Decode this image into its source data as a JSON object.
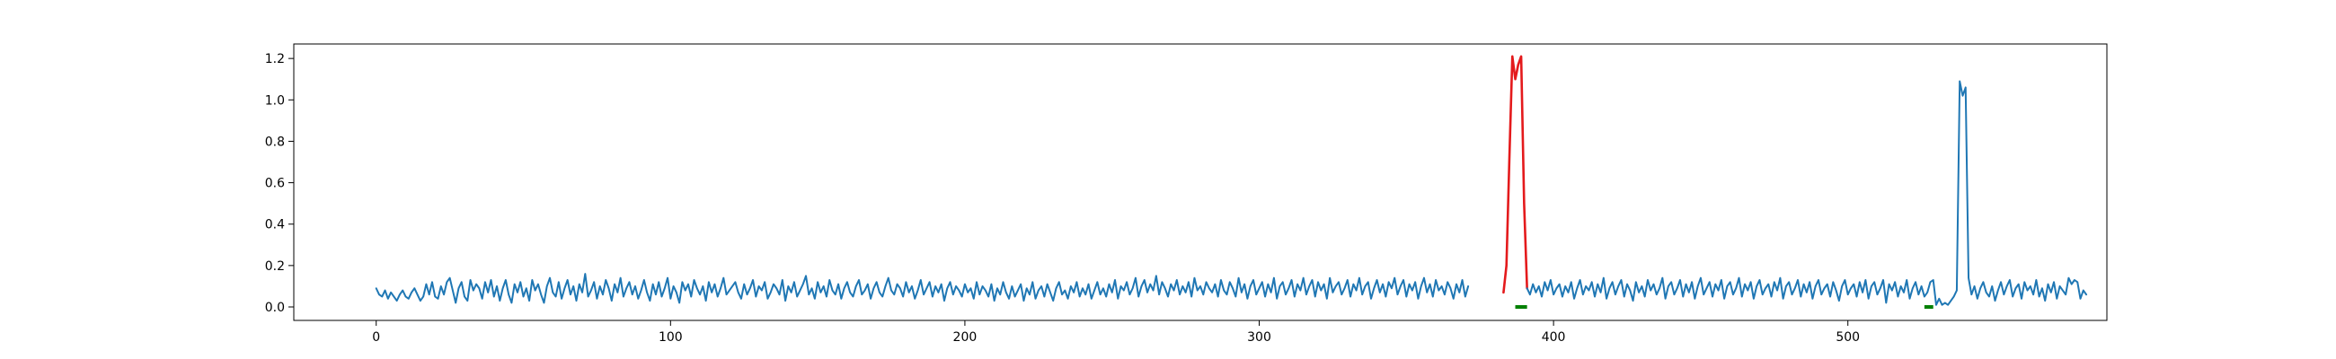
{
  "chart_data": {
    "type": "line",
    "title": "",
    "xlabel": "",
    "ylabel": "",
    "xlim": [
      -28,
      588
    ],
    "ylim": [
      -0.065,
      1.27
    ],
    "grid": false,
    "xticks": [
      0,
      100,
      200,
      300,
      400,
      500
    ],
    "xtick_labels": [
      "0",
      "100",
      "200",
      "300",
      "400",
      "500"
    ],
    "yticks": [
      0.0,
      0.2,
      0.4,
      0.6,
      0.8,
      1.0,
      1.2
    ],
    "ytick_labels": [
      "0.0",
      "0.2",
      "0.4",
      "0.6",
      "0.8",
      "1.0",
      "1.2"
    ],
    "series": [
      {
        "role": "signal",
        "color": "#1f77b4",
        "x_start": 0,
        "y": [
          0.09,
          0.06,
          0.05,
          0.08,
          0.04,
          0.07,
          0.05,
          0.03,
          0.06,
          0.08,
          0.05,
          0.04,
          0.07,
          0.09,
          0.06,
          0.03,
          0.05,
          0.11,
          0.06,
          0.12,
          0.05,
          0.04,
          0.1,
          0.06,
          0.12,
          0.14,
          0.08,
          0.02,
          0.09,
          0.12,
          0.05,
          0.03,
          0.13,
          0.08,
          0.11,
          0.09,
          0.04,
          0.12,
          0.07,
          0.13,
          0.05,
          0.1,
          0.03,
          0.09,
          0.13,
          0.06,
          0.02,
          0.11,
          0.07,
          0.12,
          0.05,
          0.09,
          0.03,
          0.13,
          0.08,
          0.11,
          0.06,
          0.02,
          0.1,
          0.14,
          0.07,
          0.05,
          0.12,
          0.04,
          0.09,
          0.13,
          0.06,
          0.1,
          0.03,
          0.11,
          0.07,
          0.16,
          0.05,
          0.08,
          0.12,
          0.04,
          0.1,
          0.06,
          0.13,
          0.09,
          0.03,
          0.11,
          0.07,
          0.14,
          0.05,
          0.09,
          0.12,
          0.06,
          0.1,
          0.04,
          0.08,
          0.13,
          0.07,
          0.03,
          0.11,
          0.06,
          0.12,
          0.05,
          0.09,
          0.14,
          0.04,
          0.1,
          0.07,
          0.02,
          0.12,
          0.08,
          0.11,
          0.05,
          0.13,
          0.09,
          0.06,
          0.1,
          0.03,
          0.12,
          0.07,
          0.11,
          0.05,
          0.09,
          0.14,
          0.06,
          0.08,
          0.1,
          0.12,
          0.07,
          0.04,
          0.11,
          0.06,
          0.09,
          0.13,
          0.05,
          0.1,
          0.08,
          0.12,
          0.04,
          0.07,
          0.11,
          0.09,
          0.06,
          0.13,
          0.03,
          0.1,
          0.07,
          0.12,
          0.05,
          0.08,
          0.11,
          0.15,
          0.06,
          0.09,
          0.04,
          0.12,
          0.07,
          0.1,
          0.05,
          0.13,
          0.08,
          0.06,
          0.11,
          0.04,
          0.09,
          0.12,
          0.07,
          0.05,
          0.1,
          0.13,
          0.06,
          0.08,
          0.11,
          0.04,
          0.09,
          0.12,
          0.07,
          0.05,
          0.1,
          0.14,
          0.08,
          0.06,
          0.11,
          0.09,
          0.05,
          0.12,
          0.07,
          0.1,
          0.04,
          0.08,
          0.13,
          0.06,
          0.09,
          0.12,
          0.05,
          0.1,
          0.07,
          0.11,
          0.03,
          0.09,
          0.12,
          0.06,
          0.1,
          0.08,
          0.05,
          0.11,
          0.07,
          0.09,
          0.04,
          0.12,
          0.06,
          0.1,
          0.08,
          0.05,
          0.11,
          0.03,
          0.09,
          0.06,
          0.12,
          0.07,
          0.04,
          0.1,
          0.05,
          0.08,
          0.11,
          0.03,
          0.09,
          0.06,
          0.12,
          0.04,
          0.08,
          0.1,
          0.05,
          0.11,
          0.07,
          0.03,
          0.09,
          0.12,
          0.06,
          0.08,
          0.04,
          0.1,
          0.07,
          0.12,
          0.05,
          0.09,
          0.06,
          0.11,
          0.04,
          0.08,
          0.12,
          0.06,
          0.09,
          0.05,
          0.11,
          0.07,
          0.13,
          0.04,
          0.1,
          0.08,
          0.12,
          0.06,
          0.09,
          0.14,
          0.05,
          0.1,
          0.13,
          0.07,
          0.11,
          0.08,
          0.15,
          0.06,
          0.12,
          0.09,
          0.05,
          0.11,
          0.08,
          0.13,
          0.06,
          0.1,
          0.07,
          0.12,
          0.05,
          0.14,
          0.08,
          0.1,
          0.06,
          0.12,
          0.09,
          0.07,
          0.11,
          0.05,
          0.13,
          0.08,
          0.06,
          0.12,
          0.09,
          0.05,
          0.14,
          0.07,
          0.11,
          0.04,
          0.1,
          0.13,
          0.06,
          0.09,
          0.12,
          0.05,
          0.11,
          0.07,
          0.14,
          0.04,
          0.1,
          0.12,
          0.06,
          0.09,
          0.13,
          0.05,
          0.11,
          0.08,
          0.14,
          0.06,
          0.1,
          0.13,
          0.05,
          0.12,
          0.08,
          0.11,
          0.04,
          0.14,
          0.07,
          0.1,
          0.12,
          0.06,
          0.09,
          0.13,
          0.05,
          0.11,
          0.08,
          0.14,
          0.06,
          0.1,
          0.12,
          0.04,
          0.09,
          0.13,
          0.07,
          0.11,
          0.05,
          0.12,
          0.09,
          0.14,
          0.06,
          0.1,
          0.13,
          0.05,
          0.11,
          0.08,
          0.12,
          0.04,
          0.1,
          0.14,
          0.07,
          0.11,
          0.05,
          0.13,
          0.08,
          0.1,
          0.06,
          0.12,
          0.09,
          0.04,
          0.11,
          0.07,
          0.13,
          0.05,
          0.1
        ]
      },
      {
        "role": "highlight",
        "color": "#e41a1c",
        "x_start": 383,
        "y": [
          0.07,
          0.2,
          0.72,
          1.21,
          1.1,
          1.17,
          1.21,
          0.5,
          0.09
        ]
      },
      {
        "role": "signal-continued",
        "color": "#1f77b4",
        "x_start": 391,
        "y": [
          0.09,
          0.06,
          0.11,
          0.07,
          0.1,
          0.05,
          0.12,
          0.08,
          0.13,
          0.06,
          0.09,
          0.11,
          0.05,
          0.1,
          0.07,
          0.12,
          0.04,
          0.09,
          0.13,
          0.06,
          0.1,
          0.08,
          0.12,
          0.05,
          0.11,
          0.07,
          0.14,
          0.04,
          0.09,
          0.12,
          0.06,
          0.1,
          0.13,
          0.05,
          0.11,
          0.08,
          0.03,
          0.12,
          0.07,
          0.1,
          0.05,
          0.13,
          0.08,
          0.11,
          0.06,
          0.09,
          0.14,
          0.04,
          0.1,
          0.12,
          0.06,
          0.09,
          0.13,
          0.05,
          0.11,
          0.07,
          0.12,
          0.04,
          0.1,
          0.14,
          0.06,
          0.09,
          0.12,
          0.05,
          0.11,
          0.08,
          0.13,
          0.04,
          0.1,
          0.12,
          0.06,
          0.09,
          0.14,
          0.05,
          0.11,
          0.08,
          0.12,
          0.04,
          0.1,
          0.13,
          0.06,
          0.09,
          0.11,
          0.05,
          0.12,
          0.08,
          0.14,
          0.04,
          0.1,
          0.12,
          0.06,
          0.09,
          0.13,
          0.05,
          0.11,
          0.07,
          0.12,
          0.04,
          0.1,
          0.13,
          0.06,
          0.09,
          0.11,
          0.05,
          0.12,
          0.08,
          0.03,
          0.1,
          0.13,
          0.06,
          0.09,
          0.11,
          0.05,
          0.12,
          0.07,
          0.13,
          0.04,
          0.1,
          0.12,
          0.06,
          0.09,
          0.13,
          0.02,
          0.11,
          0.08,
          0.12,
          0.05,
          0.1,
          0.07,
          0.13,
          0.04,
          0.09,
          0.12,
          0.06,
          0.1,
          0.05,
          0.07,
          0.12,
          0.13,
          0.01,
          0.04,
          0.01,
          0.02,
          0.01,
          0.03,
          0.05,
          0.08,
          1.09,
          1.02,
          1.06,
          0.14,
          0.06,
          0.1,
          0.04,
          0.09,
          0.12,
          0.07,
          0.05,
          0.1,
          0.03,
          0.08,
          0.12,
          0.06,
          0.1,
          0.13,
          0.05,
          0.09,
          0.11,
          0.04,
          0.12,
          0.08,
          0.1,
          0.06,
          0.13,
          0.05,
          0.09,
          0.03,
          0.11,
          0.07,
          0.12,
          0.04,
          0.1,
          0.08,
          0.06,
          0.14,
          0.11,
          0.13,
          0.12,
          0.04,
          0.08,
          0.06
        ]
      }
    ],
    "markers": [
      {
        "role": "detected",
        "color": "#008000",
        "x": [
          387,
          391
        ],
        "y": 0.0
      },
      {
        "role": "detected",
        "color": "#008000",
        "x": [
          526,
          529
        ],
        "y": 0.0
      }
    ]
  }
}
